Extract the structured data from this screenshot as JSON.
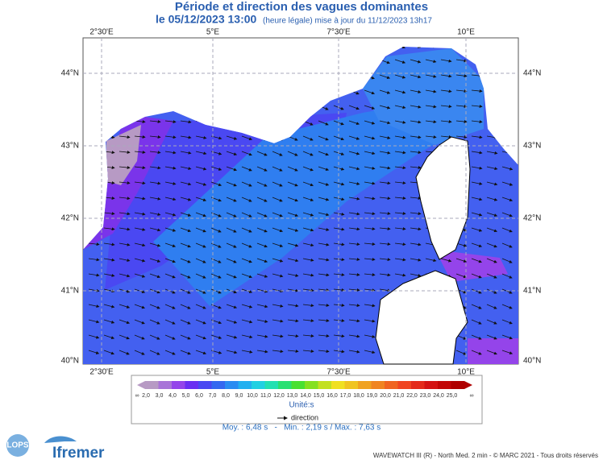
{
  "header": {
    "title": "Période et direction des vagues dominantes",
    "date": "le 05/12/2023 13:00",
    "note": "(heure légale) mise à jour du 11/12/2023 13h17"
  },
  "axes": {
    "lon_labels": [
      "2°30'E",
      "5°E",
      "7°30'E",
      "10°E"
    ],
    "lat_labels": [
      "44°N",
      "43°N",
      "42°N",
      "41°N",
      "40°N"
    ]
  },
  "colorbar": {
    "labels": [
      "2,0",
      "3,0",
      "4,0",
      "5,0",
      "6,0",
      "7,0",
      "8,0",
      "9,0",
      "10,0",
      "11,0",
      "12,0",
      "13,0",
      "14,0",
      "15,0",
      "16,0",
      "17,0",
      "18,0",
      "19,0",
      "20,0",
      "21,0",
      "22,0",
      "23,0",
      "24,0",
      "25,0"
    ],
    "colors": [
      "#b79ac4",
      "#a874d8",
      "#9444ea",
      "#6a2ef2",
      "#4a48f2",
      "#3468f0",
      "#2a8cf2",
      "#22b0f0",
      "#20d0e2",
      "#22e0b2",
      "#28e072",
      "#48e032",
      "#84e020",
      "#c2e020",
      "#f0e020",
      "#f0c420",
      "#f0a220",
      "#f08420",
      "#f06420",
      "#f04420",
      "#e42a1a",
      "#d41212",
      "#c20606",
      "#b00000"
    ],
    "unit": "Unité:s",
    "end_low": "∞",
    "end_high": "∞"
  },
  "legend": {
    "arrow_label": "direction"
  },
  "stats": "Moy. : 6,48 s   -   Min. : 2,19 s / Max. : 7,63 s",
  "logos": {
    "left": "LOPS",
    "right": "Ifremer"
  },
  "footer": "WAVEWATCH III (R) - North Med. 2 min - © MARC 2021 - Tous droits réservés"
}
